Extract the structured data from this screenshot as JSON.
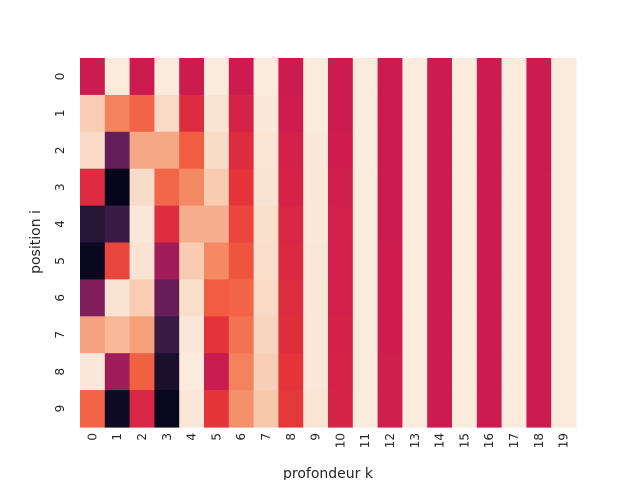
{
  "chart_data": {
    "type": "heatmap",
    "title": "",
    "xlabel": "profondeur k",
    "ylabel": "position i",
    "x_categories": [
      "0",
      "1",
      "2",
      "3",
      "4",
      "5",
      "6",
      "7",
      "8",
      "9",
      "10",
      "11",
      "12",
      "13",
      "14",
      "15",
      "16",
      "17",
      "18",
      "19"
    ],
    "y_categories": [
      "0",
      "1",
      "2",
      "3",
      "4",
      "5",
      "6",
      "7",
      "8",
      "9"
    ],
    "value_range": [
      -1,
      1
    ],
    "colormap": "rocket",
    "colorbar": false,
    "values": [
      [
        0.0,
        1.0,
        0.0,
        1.0,
        0.0,
        1.0,
        0.0,
        1.0,
        0.0,
        1.0,
        0.0,
        1.0,
        0.0,
        1.0,
        0.0,
        1.0,
        0.0,
        1.0,
        0.0,
        1.0
      ],
      [
        0.84,
        0.54,
        0.41,
        0.91,
        0.14,
        0.96,
        0.07,
        0.99,
        0.02,
        1.0,
        0.01,
        1.0,
        0.0,
        1.0,
        0.0,
        1.0,
        0.0,
        1.0,
        0.0,
        1.0
      ],
      [
        0.91,
        -0.42,
        0.68,
        0.68,
        0.38,
        0.92,
        0.14,
        0.97,
        0.05,
        0.99,
        0.02,
        1.0,
        0.01,
        1.0,
        0.0,
        1.0,
        0.0,
        1.0,
        0.0,
        1.0
      ],
      [
        0.14,
        -0.99,
        0.92,
        0.42,
        0.56,
        0.83,
        0.21,
        0.96,
        0.07,
        0.99,
        0.03,
        1.0,
        0.01,
        1.0,
        0.0,
        1.0,
        0.0,
        1.0,
        0.0,
        1.0
      ],
      [
        -0.76,
        -0.65,
        0.99,
        0.15,
        0.71,
        0.71,
        0.28,
        0.94,
        0.1,
        0.99,
        0.04,
        1.0,
        0.01,
        1.0,
        0.0,
        1.0,
        0.0,
        1.0,
        0.0,
        1.0
      ],
      [
        -0.96,
        0.28,
        0.96,
        -0.14,
        0.83,
        0.56,
        0.34,
        0.93,
        0.12,
        0.98,
        0.04,
        1.0,
        0.02,
        1.0,
        0.01,
        1.0,
        0.0,
        1.0,
        0.0,
        1.0
      ],
      [
        -0.28,
        0.96,
        0.84,
        -0.41,
        0.93,
        0.38,
        0.41,
        0.91,
        0.15,
        0.98,
        0.05,
        1.0,
        0.02,
        1.0,
        0.01,
        1.0,
        0.0,
        1.0,
        0.0,
        1.0
      ],
      [
        0.66,
        0.75,
        0.65,
        -0.65,
        0.98,
        0.2,
        0.47,
        0.88,
        0.17,
        0.98,
        0.06,
        1.0,
        0.02,
        1.0,
        0.01,
        1.0,
        0.0,
        1.0,
        0.0,
        1.0
      ],
      [
        0.99,
        -0.15,
        0.39,
        -0.84,
        1.0,
        -0.01,
        0.53,
        0.85,
        0.2,
        0.98,
        0.07,
        1.0,
        0.03,
        1.0,
        0.01,
        1.0,
        0.0,
        1.0,
        0.0,
        1.0
      ],
      [
        0.41,
        -0.91,
        0.1,
        -0.96,
        0.98,
        0.21,
        0.59,
        0.81,
        0.22,
        0.97,
        0.08,
        1.0,
        0.03,
        1.0,
        0.01,
        1.0,
        0.0,
        1.0,
        0.0,
        1.0
      ]
    ]
  }
}
